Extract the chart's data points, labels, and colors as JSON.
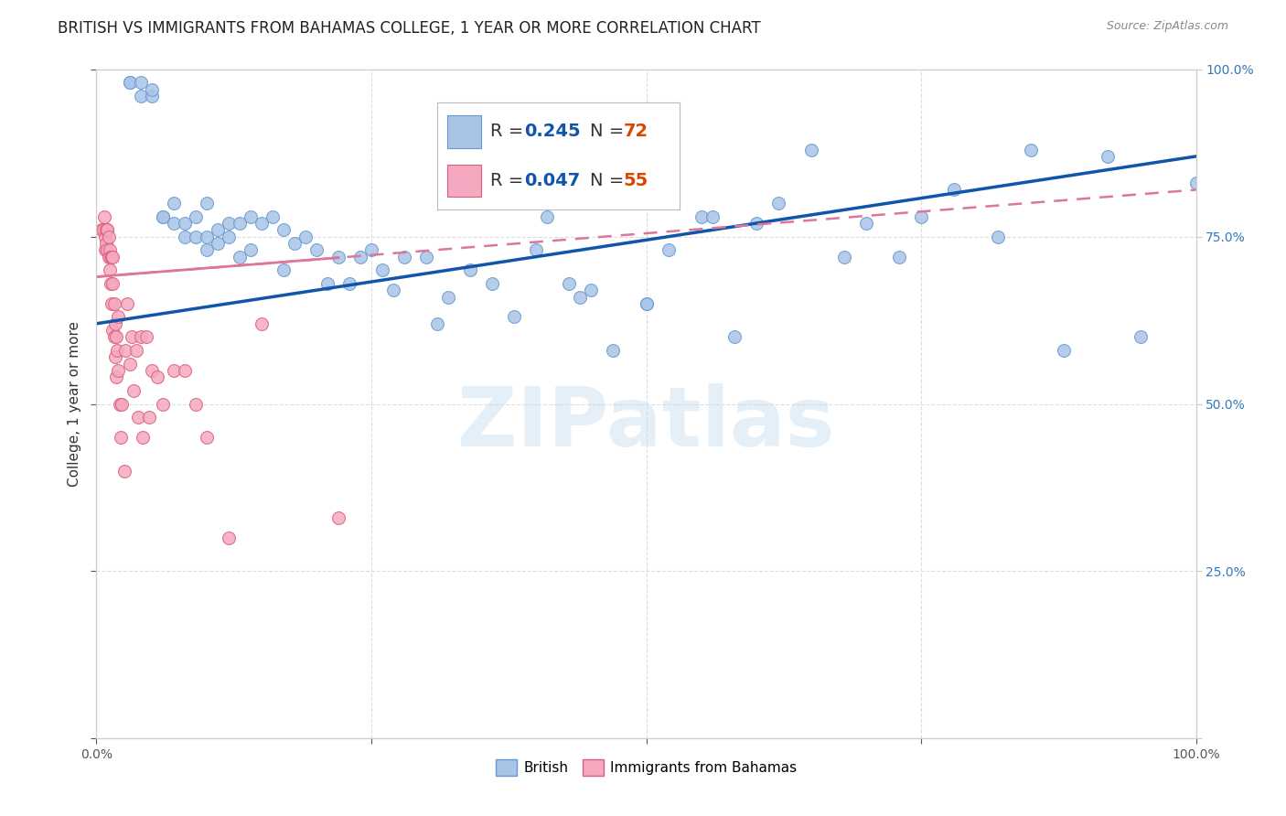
{
  "title": "BRITISH VS IMMIGRANTS FROM BAHAMAS COLLEGE, 1 YEAR OR MORE CORRELATION CHART",
  "source": "Source: ZipAtlas.com",
  "ylabel": "College, 1 year or more",
  "xlim": [
    0,
    1
  ],
  "ylim": [
    0,
    1
  ],
  "watermark": "ZIPatlas",
  "legend_r_british": "0.245",
  "legend_n_british": "72",
  "legend_r_bahamas": "0.047",
  "legend_n_bahamas": "55",
  "british_color": "#aac4e8",
  "british_edge_color": "#6699cc",
  "bahamas_color": "#f5a8bf",
  "bahamas_edge_color": "#d9607a",
  "trend_british_color": "#1155aa",
  "trend_bahamas_color": "#dd7799",
  "n_color": "#dd4400",
  "r_color": "#1155aa",
  "background_color": "#ffffff",
  "grid_color": "#dddddd",
  "title_fontsize": 12,
  "axis_fontsize": 11,
  "tick_fontsize": 10,
  "legend_fontsize": 14,
  "marker_size": 100,
  "british_scatter_x": [
    0.03,
    0.03,
    0.04,
    0.04,
    0.05,
    0.05,
    0.06,
    0.06,
    0.07,
    0.07,
    0.08,
    0.08,
    0.09,
    0.09,
    0.1,
    0.1,
    0.1,
    0.11,
    0.11,
    0.12,
    0.12,
    0.13,
    0.13,
    0.14,
    0.14,
    0.15,
    0.16,
    0.17,
    0.17,
    0.18,
    0.19,
    0.2,
    0.21,
    0.22,
    0.23,
    0.24,
    0.25,
    0.26,
    0.27,
    0.28,
    0.3,
    0.31,
    0.32,
    0.34,
    0.36,
    0.38,
    0.4,
    0.41,
    0.43,
    0.44,
    0.45,
    0.47,
    0.5,
    0.5,
    0.52,
    0.55,
    0.56,
    0.58,
    0.6,
    0.62,
    0.65,
    0.68,
    0.7,
    0.73,
    0.75,
    0.78,
    0.82,
    0.85,
    0.88,
    0.92,
    0.95,
    1.0
  ],
  "british_scatter_y": [
    0.98,
    0.98,
    0.98,
    0.96,
    0.96,
    0.97,
    0.78,
    0.78,
    0.8,
    0.77,
    0.77,
    0.75,
    0.75,
    0.78,
    0.75,
    0.73,
    0.8,
    0.74,
    0.76,
    0.75,
    0.77,
    0.72,
    0.77,
    0.73,
    0.78,
    0.77,
    0.78,
    0.7,
    0.76,
    0.74,
    0.75,
    0.73,
    0.68,
    0.72,
    0.68,
    0.72,
    0.73,
    0.7,
    0.67,
    0.72,
    0.72,
    0.62,
    0.66,
    0.7,
    0.68,
    0.63,
    0.73,
    0.78,
    0.68,
    0.66,
    0.67,
    0.58,
    0.65,
    0.65,
    0.73,
    0.78,
    0.78,
    0.6,
    0.77,
    0.8,
    0.88,
    0.72,
    0.77,
    0.72,
    0.78,
    0.82,
    0.75,
    0.88,
    0.58,
    0.87,
    0.6,
    0.83
  ],
  "bahamas_scatter_x": [
    0.005,
    0.006,
    0.007,
    0.008,
    0.008,
    0.009,
    0.009,
    0.01,
    0.01,
    0.01,
    0.011,
    0.011,
    0.012,
    0.012,
    0.013,
    0.013,
    0.014,
    0.014,
    0.015,
    0.015,
    0.015,
    0.016,
    0.016,
    0.017,
    0.017,
    0.018,
    0.018,
    0.019,
    0.02,
    0.02,
    0.021,
    0.022,
    0.023,
    0.025,
    0.026,
    0.028,
    0.03,
    0.032,
    0.034,
    0.036,
    0.038,
    0.04,
    0.042,
    0.045,
    0.048,
    0.05,
    0.055,
    0.06,
    0.07,
    0.08,
    0.09,
    0.1,
    0.12,
    0.15,
    0.22
  ],
  "bahamas_scatter_y": [
    0.76,
    0.76,
    0.78,
    0.75,
    0.73,
    0.76,
    0.74,
    0.76,
    0.73,
    0.76,
    0.75,
    0.72,
    0.73,
    0.7,
    0.72,
    0.68,
    0.72,
    0.65,
    0.72,
    0.68,
    0.61,
    0.65,
    0.6,
    0.62,
    0.57,
    0.6,
    0.54,
    0.58,
    0.63,
    0.55,
    0.5,
    0.45,
    0.5,
    0.4,
    0.58,
    0.65,
    0.56,
    0.6,
    0.52,
    0.58,
    0.48,
    0.6,
    0.45,
    0.6,
    0.48,
    0.55,
    0.54,
    0.5,
    0.55,
    0.55,
    0.5,
    0.45,
    0.3,
    0.62,
    0.33
  ],
  "trend_british_x0": 0.0,
  "trend_british_x1": 1.0,
  "trend_british_y0": 0.62,
  "trend_british_y1": 0.87,
  "trend_bahamas_x0": 0.0,
  "trend_bahamas_x1": 1.0,
  "trend_bahamas_y0": 0.69,
  "trend_bahamas_y1": 0.82
}
